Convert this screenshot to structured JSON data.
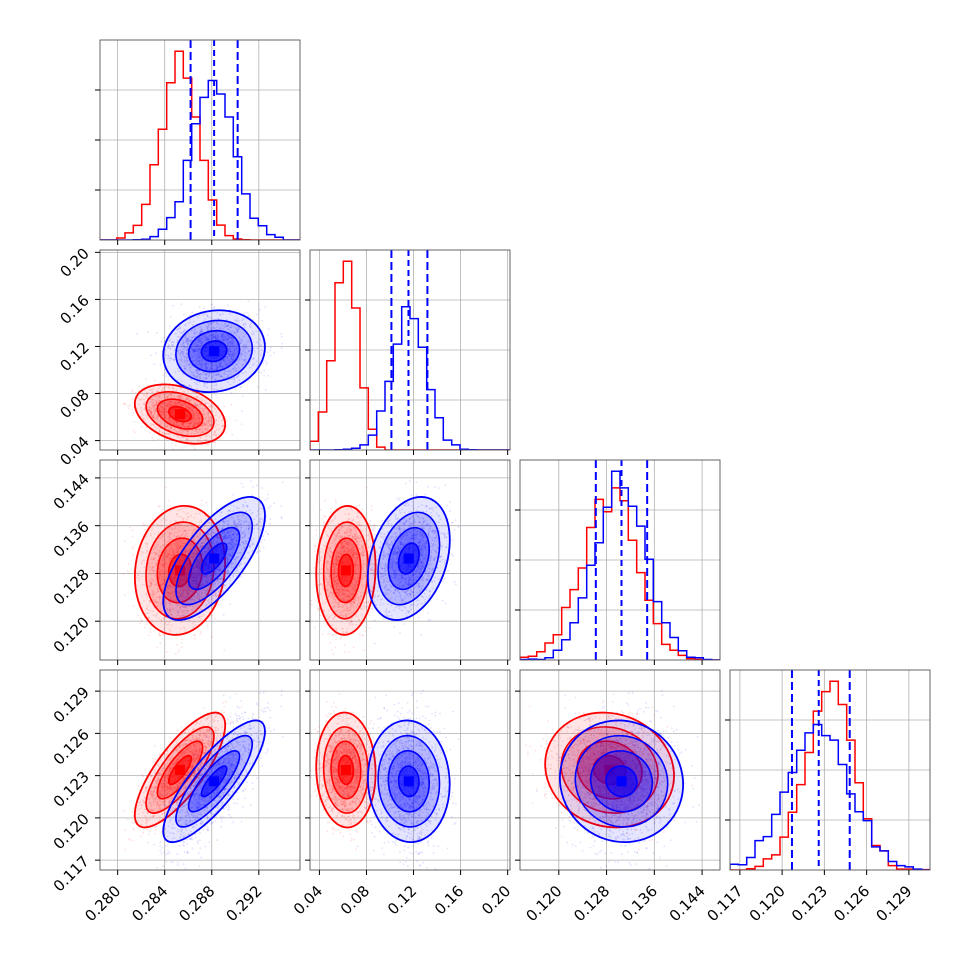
{
  "chart_data": {
    "type": "corner",
    "grid": true,
    "colors": {
      "series_a": "#ff0000",
      "series_b": "#0000ff"
    },
    "parameters": [
      {
        "range": [
          0.2785,
          0.2955
        ],
        "ticks": [
          "0.280",
          "0.284",
          "0.288",
          "0.292"
        ]
      },
      {
        "range": [
          0.032,
          0.202
        ],
        "ticks": [
          "0.04",
          "0.08",
          "0.12",
          "0.16",
          "0.20"
        ]
      },
      {
        "range": [
          0.1135,
          0.147
        ],
        "ticks": [
          "0.120",
          "0.128",
          "0.136",
          "0.144"
        ]
      },
      {
        "range": [
          0.1163,
          0.1305
        ],
        "ticks": [
          "0.117",
          "0.120",
          "0.123",
          "0.126",
          "0.129"
        ]
      }
    ],
    "series": [
      {
        "color": "#ff0000",
        "mean": [
          0.2853,
          0.0625,
          0.1285,
          0.1234
        ],
        "sd": [
          0.0016,
          0.0105,
          0.0045,
          0.0017
        ],
        "corr": [
          [
            0,
            1,
            -0.35
          ],
          [
            0,
            2,
            0.1
          ],
          [
            0,
            3,
            0.78
          ],
          [
            1,
            2,
            0.05
          ],
          [
            1,
            3,
            -0.05
          ],
          [
            2,
            3,
            -0.1
          ]
        ]
      },
      {
        "color": "#0000ff",
        "mean": [
          0.2882,
          0.116,
          0.1305,
          0.1226
        ],
        "sd": [
          0.0018,
          0.0145,
          0.0043,
          0.0018
        ],
        "corr": [
          [
            0,
            1,
            0.1
          ],
          [
            0,
            2,
            0.7
          ],
          [
            0,
            3,
            0.82
          ],
          [
            1,
            2,
            0.3
          ],
          [
            1,
            3,
            -0.05
          ],
          [
            2,
            3,
            -0.05
          ]
        ]
      }
    ],
    "quantiles": [
      [
        0.2862,
        0.2882,
        0.2902
      ],
      [
        0.1012,
        0.1157,
        0.1318
      ],
      [
        0.1262,
        0.1305,
        0.1348
      ],
      [
        0.1207,
        0.1226,
        0.1248
      ]
    ]
  }
}
